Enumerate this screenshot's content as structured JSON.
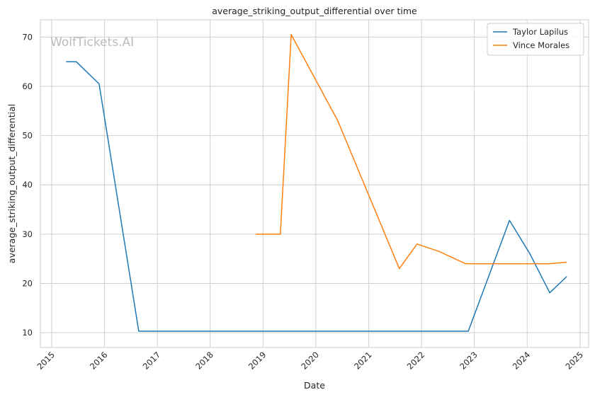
{
  "chart_data": {
    "type": "line",
    "title": "average_striking_output_differential over time",
    "xlabel": "Date",
    "ylabel": "average_striking_output_differential",
    "watermark": "WolfTickets.AI",
    "x_ticks": [
      "2015",
      "2016",
      "2017",
      "2018",
      "2019",
      "2020",
      "2021",
      "2022",
      "2023",
      "2024",
      "2025"
    ],
    "y_ticks": [
      10,
      20,
      30,
      40,
      50,
      60,
      70
    ],
    "xlim": [
      "2014-10-15",
      "2025-03-01"
    ],
    "ylim": [
      7,
      73.5
    ],
    "grid": true,
    "legend_position": "top-right",
    "series": [
      {
        "name": "Taylor Lapilus",
        "color": "#1f77b4",
        "points": [
          [
            "2015-04-15",
            65.0
          ],
          [
            "2015-06-20",
            65.0
          ],
          [
            "2015-11-25",
            60.5
          ],
          [
            "2016-08-25",
            10.3
          ],
          [
            "2022-11-20",
            10.3
          ],
          [
            "2023-09-01",
            32.8
          ],
          [
            "2024-01-20",
            26.0
          ],
          [
            "2024-06-05",
            18.1
          ],
          [
            "2024-09-28",
            21.3
          ]
        ]
      },
      {
        "name": "Vince Morales",
        "color": "#ff7f0e",
        "points": [
          [
            "2018-11-15",
            30.0
          ],
          [
            "2019-05-01",
            30.0
          ],
          [
            "2019-07-15",
            70.5
          ],
          [
            "2020-06-01",
            53.0
          ],
          [
            "2021-07-31",
            23.0
          ],
          [
            "2021-12-01",
            28.0
          ],
          [
            "2022-05-01",
            26.5
          ],
          [
            "2022-11-01",
            24.0
          ],
          [
            "2024-06-05",
            24.0
          ],
          [
            "2024-09-28",
            24.3
          ]
        ]
      }
    ]
  }
}
